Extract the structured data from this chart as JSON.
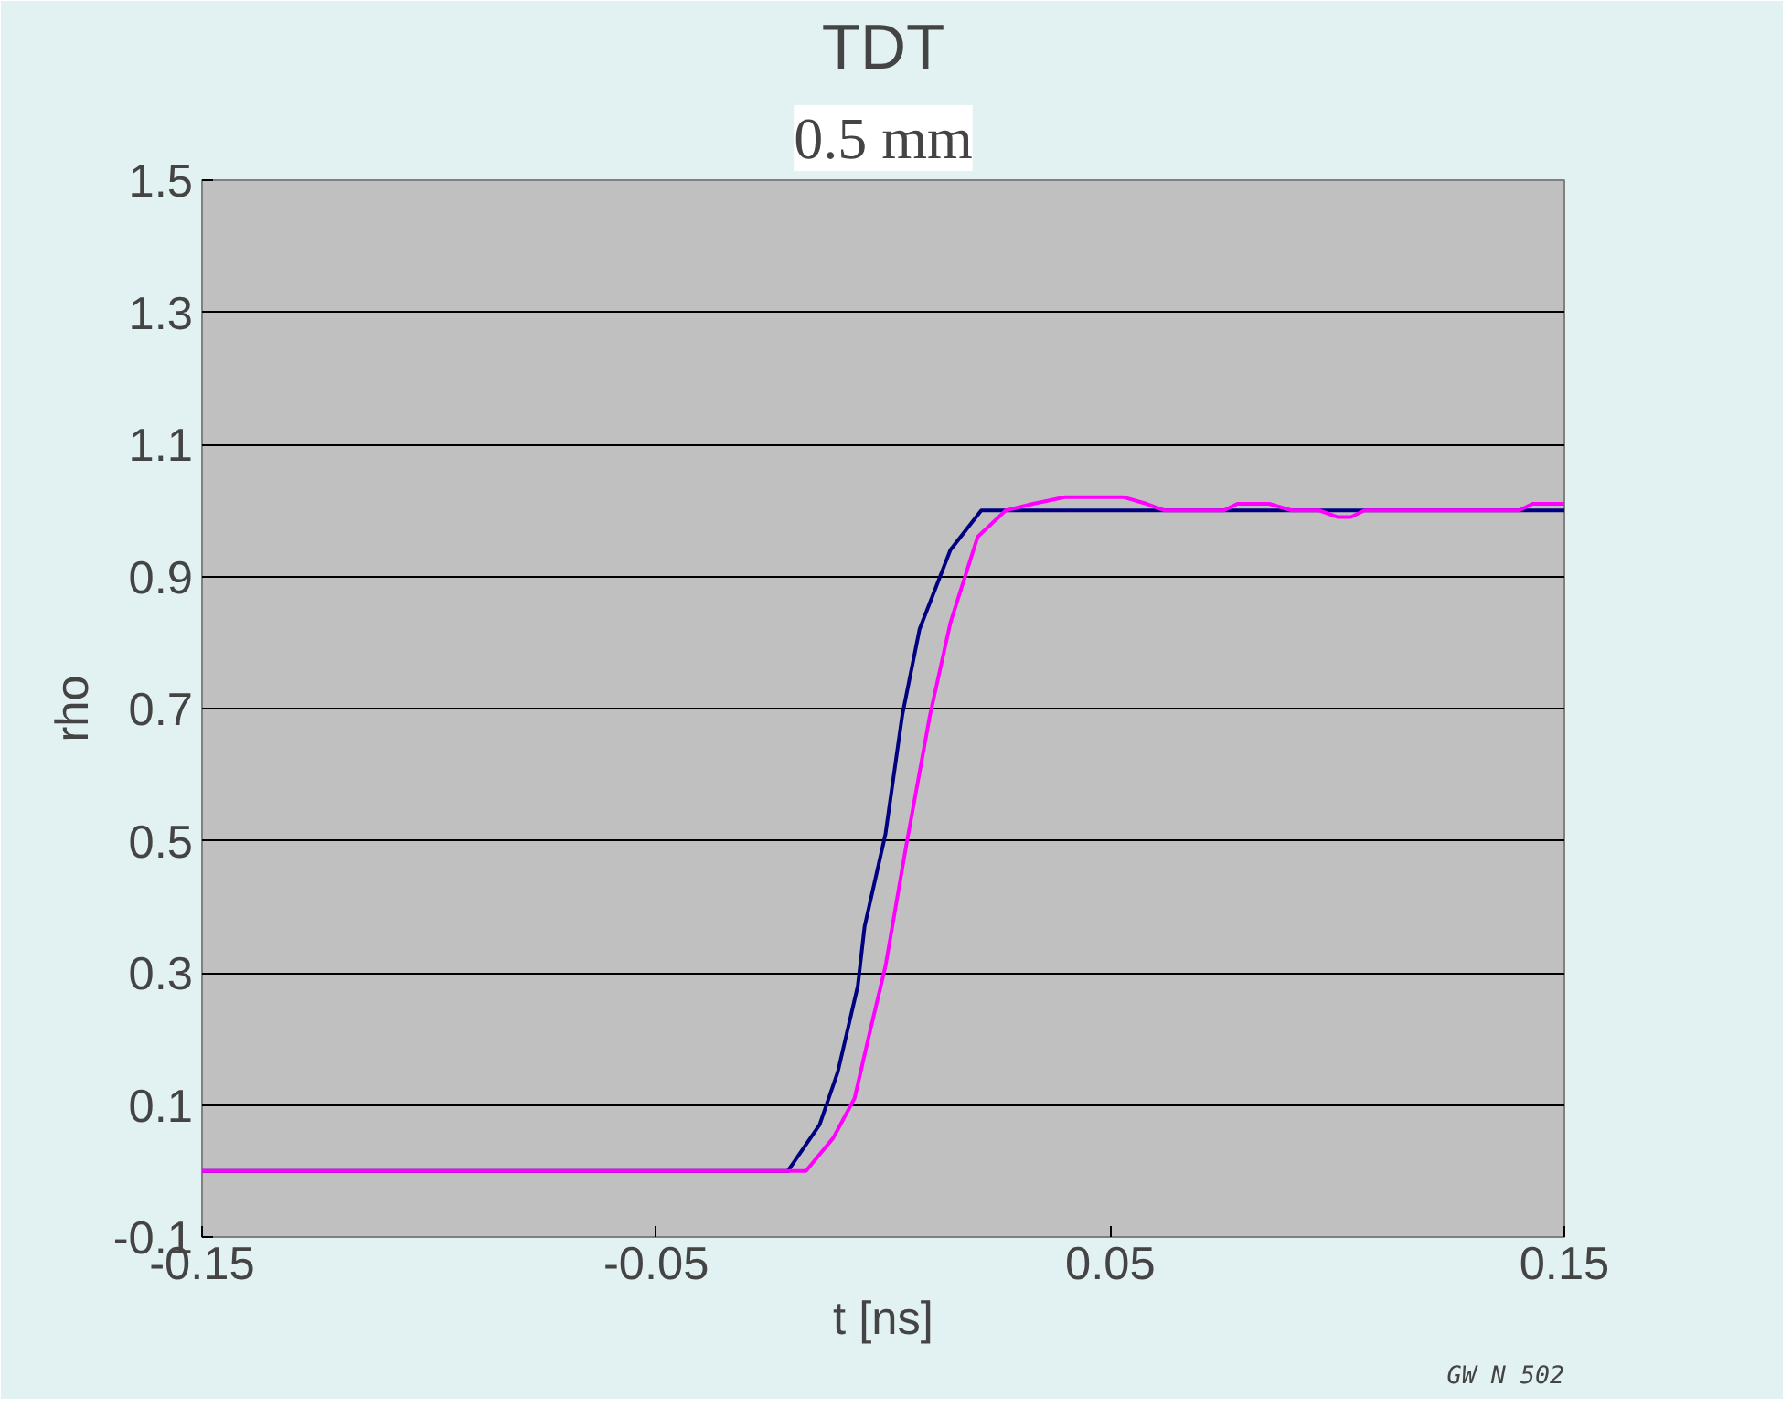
{
  "chart_data": {
    "type": "line",
    "title": "TDT",
    "subtitle": "0.5 mm",
    "xlabel": "t [ns]",
    "ylabel": "rho",
    "annotations": [
      "GW N 502"
    ],
    "xlim": [
      -0.15,
      0.15
    ],
    "xticks": [
      -0.15,
      -0.05,
      0.05,
      0.15
    ],
    "ylim": [
      -0.1,
      1.5
    ],
    "yticks": [
      -0.1,
      0.1,
      0.3,
      0.5,
      0.7,
      0.9,
      1.1,
      1.3,
      1.5
    ],
    "grid": "y",
    "marker": "none",
    "line_style": "solid",
    "series": [
      {
        "color": "#000080",
        "x": [
          -0.15,
          -0.021,
          -0.014,
          -0.01,
          -0.0056,
          -0.0041,
          0.0005,
          0.0042,
          0.008,
          0.0148,
          0.0216,
          0.027,
          0.06,
          0.1,
          0.15
        ],
        "values": [
          0,
          0.0,
          0.07,
          0.15,
          0.28,
          0.37,
          0.51,
          0.69,
          0.82,
          0.94,
          1.0,
          1.0,
          1.0,
          1.0,
          1.0
        ]
      },
      {
        "color": "#ff00ff",
        "x": [
          -0.15,
          -0.017,
          -0.011,
          -0.0063,
          -0.0033,
          0.0005,
          0.005,
          0.0103,
          0.0148,
          0.0208,
          0.027,
          0.033,
          0.04,
          0.053,
          0.058,
          0.062,
          0.075,
          0.078,
          0.085,
          0.09,
          0.096,
          0.1,
          0.103,
          0.106,
          0.13,
          0.14,
          0.143,
          0.15
        ],
        "values": [
          0,
          0.0,
          0.05,
          0.11,
          0.2,
          0.31,
          0.49,
          0.69,
          0.83,
          0.96,
          1.0,
          1.01,
          1.02,
          1.02,
          1.01,
          1.0,
          1.0,
          1.01,
          1.01,
          1.0,
          1.0,
          0.99,
          0.99,
          1.0,
          1.0,
          1.0,
          1.01,
          1.01
        ]
      }
    ]
  }
}
